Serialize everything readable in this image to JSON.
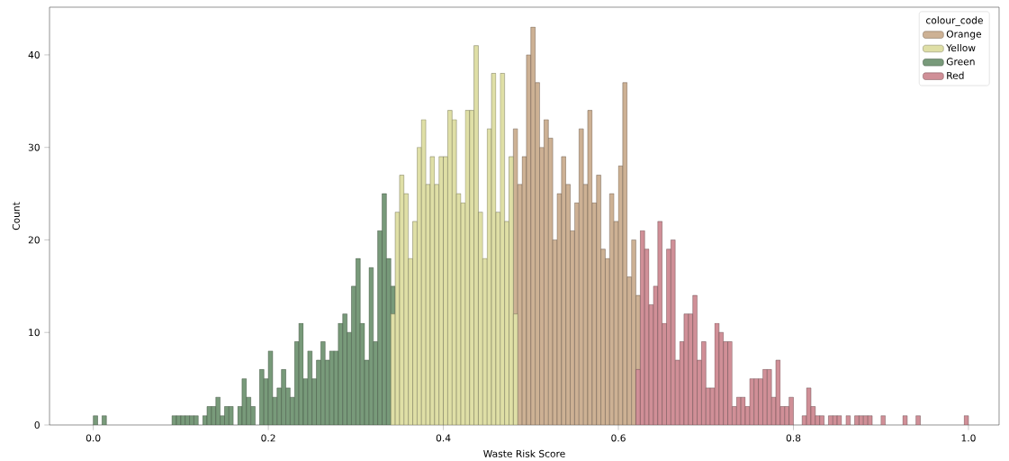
{
  "chart_data": {
    "type": "histogram",
    "xlabel": "Waste Risk Score",
    "ylabel": "Count",
    "legend_title": "colour_code",
    "legend": "top right",
    "xlim": [
      -0.05,
      1.035
    ],
    "ylim": [
      0,
      45.15
    ],
    "xticks": [
      {
        "value": 0,
        "label": "0.0"
      },
      {
        "value": 0.2,
        "label": "0.2"
      },
      {
        "value": 0.4,
        "label": "0.4"
      },
      {
        "value": 0.6,
        "label": "0.6"
      },
      {
        "value": 0.8,
        "label": "0.8"
      },
      {
        "value": 1,
        "label": "1.0"
      }
    ],
    "yticks": [
      0,
      10,
      20,
      30,
      40
    ],
    "bins": [
      0,
      0.005,
      0.01,
      0.015,
      0.02,
      0.025,
      0.03,
      0.035,
      0.04,
      0.045,
      0.05,
      0.055,
      0.06,
      0.065,
      0.07,
      0.075,
      0.08,
      0.085,
      0.09,
      0.095,
      0.1,
      0.105,
      0.11,
      0.115,
      0.12,
      0.125,
      0.13,
      0.135,
      0.14,
      0.145,
      0.15,
      0.155,
      0.16,
      0.165,
      0.17,
      0.175,
      0.18,
      0.185,
      0.19,
      0.195,
      0.2,
      0.205,
      0.21,
      0.215,
      0.22,
      0.225,
      0.23,
      0.235,
      0.24,
      0.245,
      0.25,
      0.255,
      0.26,
      0.265,
      0.27,
      0.275,
      0.28,
      0.285,
      0.29,
      0.295,
      0.3,
      0.305,
      0.31,
      0.315,
      0.32,
      0.325,
      0.33,
      0.335,
      0.34,
      0.345,
      0.35,
      0.355,
      0.36,
      0.365,
      0.37,
      0.375,
      0.38,
      0.385,
      0.39,
      0.395,
      0.4,
      0.405,
      0.41,
      0.415,
      0.42,
      0.425,
      0.43,
      0.435,
      0.44,
      0.445,
      0.45,
      0.455,
      0.46,
      0.465,
      0.47,
      0.475,
      0.48,
      0.485,
      0.49,
      0.495,
      0.5,
      0.505,
      0.51,
      0.515,
      0.52,
      0.525,
      0.53,
      0.535,
      0.54,
      0.545,
      0.55,
      0.555,
      0.56,
      0.565,
      0.57,
      0.575,
      0.58,
      0.585,
      0.59,
      0.595,
      0.6,
      0.605,
      0.61,
      0.615,
      0.62,
      0.625,
      0.63,
      0.635,
      0.64,
      0.645,
      0.65,
      0.655,
      0.66,
      0.665,
      0.67,
      0.675,
      0.68,
      0.685,
      0.69,
      0.695,
      0.7,
      0.705,
      0.71,
      0.715,
      0.72,
      0.725,
      0.73,
      0.735,
      0.74,
      0.745,
      0.75,
      0.755,
      0.76,
      0.765,
      0.77,
      0.775,
      0.78,
      0.785,
      0.79,
      0.795,
      0.8,
      0.805,
      0.81,
      0.815,
      0.82,
      0.825,
      0.83,
      0.835,
      0.84,
      0.845,
      0.85,
      0.855,
      0.86,
      0.865,
      0.87,
      0.875,
      0.88,
      0.885,
      0.89,
      0.895,
      0.9,
      0.905,
      0.91,
      0.915,
      0.92,
      0.925,
      0.93,
      0.935,
      0.94,
      0.945,
      0.95,
      0.955,
      0.96,
      0.965,
      0.97,
      0.975,
      0.98,
      0.985,
      0.99,
      0.995,
      1
    ],
    "series": [
      {
        "name": "Orange",
        "color": "#cdb194",
        "values": [
          null,
          null,
          null,
          null,
          null,
          null,
          null,
          null,
          null,
          null,
          null,
          null,
          null,
          null,
          null,
          null,
          null,
          null,
          null,
          null,
          null,
          null,
          null,
          null,
          null,
          null,
          null,
          null,
          null,
          null,
          null,
          null,
          null,
          null,
          null,
          null,
          null,
          null,
          null,
          null,
          null,
          null,
          null,
          null,
          null,
          null,
          null,
          null,
          null,
          null,
          null,
          null,
          null,
          null,
          null,
          null,
          null,
          null,
          null,
          null,
          null,
          null,
          null,
          null,
          null,
          null,
          null,
          null,
          null,
          null,
          null,
          null,
          null,
          null,
          null,
          null,
          null,
          null,
          null,
          null,
          null,
          null,
          null,
          null,
          null,
          null,
          null,
          null,
          null,
          null,
          null,
          null,
          null,
          null,
          null,
          null,
          32,
          26,
          29,
          40,
          43,
          37,
          30,
          33,
          31,
          20,
          25,
          29,
          26,
          21,
          24,
          32,
          26,
          34,
          24,
          27,
          19,
          18,
          25,
          22,
          28,
          37,
          16,
          20,
          14,
          null,
          null,
          null,
          null,
          null,
          null,
          null,
          null,
          null,
          null,
          null,
          null,
          null,
          null,
          null,
          null,
          null,
          null,
          null,
          null,
          null,
          null,
          null,
          null,
          null,
          null,
          null,
          null,
          null,
          null,
          null,
          null,
          null,
          null,
          null,
          null,
          null,
          null,
          null,
          null,
          null,
          null,
          null,
          null,
          null,
          null,
          null,
          null,
          null,
          null,
          null,
          null,
          null,
          null,
          null,
          null,
          null,
          null,
          null,
          null,
          null,
          null,
          null,
          null,
          null,
          null,
          null,
          null,
          null,
          null,
          null,
          null,
          null,
          null,
          null
        ]
      },
      {
        "name": "Yellow",
        "color": "#dfdfa6",
        "values": [
          null,
          null,
          null,
          null,
          null,
          null,
          null,
          null,
          null,
          null,
          null,
          null,
          null,
          null,
          null,
          null,
          null,
          null,
          null,
          null,
          null,
          null,
          null,
          null,
          null,
          null,
          null,
          null,
          null,
          null,
          null,
          null,
          null,
          null,
          null,
          null,
          null,
          null,
          null,
          null,
          null,
          null,
          null,
          null,
          null,
          null,
          null,
          null,
          null,
          null,
          null,
          null,
          null,
          null,
          null,
          null,
          null,
          null,
          null,
          null,
          null,
          null,
          null,
          null,
          null,
          null,
          null,
          null,
          12,
          23,
          27,
          25,
          18,
          22,
          30,
          33,
          26,
          29,
          26,
          29,
          29,
          34,
          33,
          25,
          24,
          34,
          34,
          41,
          23,
          18,
          32,
          38,
          23,
          38,
          22,
          29,
          12,
          null,
          null,
          null,
          null,
          null,
          null,
          null,
          null,
          null,
          null,
          null,
          null,
          null,
          null,
          null,
          null,
          null,
          null,
          null,
          null,
          null,
          null,
          null,
          null,
          null,
          null,
          null,
          null,
          null,
          null,
          null,
          null,
          null,
          null,
          null,
          null,
          null,
          null,
          null,
          null,
          null,
          null,
          null,
          null,
          null,
          null,
          null,
          null,
          null,
          null,
          null,
          null,
          null,
          null,
          null,
          null,
          null,
          null,
          null,
          null,
          null,
          null,
          null,
          null,
          null,
          null,
          null,
          null,
          null,
          null,
          null,
          null,
          null,
          null,
          null,
          null,
          null,
          null,
          null,
          null,
          null,
          null,
          null,
          null,
          null,
          null,
          null,
          null,
          null,
          null,
          null,
          null,
          null,
          null,
          null,
          null,
          null,
          null,
          null,
          null,
          null,
          null,
          null
        ]
      },
      {
        "name": "Green",
        "color": "#789a7a",
        "values": [
          1,
          0,
          1,
          0,
          0,
          0,
          0,
          0,
          0,
          0,
          0,
          0,
          0,
          0,
          0,
          0,
          0,
          0,
          1,
          1,
          1,
          1,
          1,
          1,
          0,
          1,
          2,
          2,
          3,
          1,
          2,
          2,
          0,
          2,
          5,
          3,
          2,
          0,
          6,
          5,
          8,
          3,
          4,
          6,
          4,
          3,
          9,
          11,
          5,
          8,
          5,
          7,
          9,
          7,
          8,
          8,
          11,
          12,
          10,
          15,
          18,
          11,
          7,
          17,
          9,
          21,
          25,
          18,
          15,
          null,
          null,
          null,
          null,
          null,
          null,
          null,
          null,
          null,
          null,
          null,
          null,
          null,
          null,
          null,
          null,
          null,
          null,
          null,
          null,
          null,
          null,
          null,
          null,
          null,
          null,
          null,
          null,
          null,
          null,
          null,
          null,
          null,
          null,
          null,
          null,
          null,
          null,
          null,
          null,
          null,
          null,
          null,
          null,
          null,
          null,
          null,
          null,
          null,
          null,
          null,
          null,
          null,
          null,
          null,
          null,
          null,
          null,
          null,
          null,
          null,
          null,
          null,
          null,
          null,
          null,
          null,
          null,
          null,
          null,
          null,
          null,
          null,
          null,
          null,
          null,
          null,
          null,
          null,
          null,
          null,
          null,
          null,
          null,
          null,
          null,
          null,
          null,
          null,
          null,
          null,
          null,
          null,
          null,
          null,
          null,
          null,
          null,
          null,
          null,
          null,
          null,
          null,
          null,
          null,
          null,
          null,
          null,
          null,
          null,
          null,
          null,
          null,
          null,
          null,
          null,
          null,
          null,
          null,
          null,
          null,
          null,
          null,
          null,
          null,
          null,
          null,
          null,
          null,
          null,
          null
        ]
      },
      {
        "name": "Red",
        "color": "#d08f97",
        "values": [
          null,
          null,
          null,
          null,
          null,
          null,
          null,
          null,
          null,
          null,
          null,
          null,
          null,
          null,
          null,
          null,
          null,
          null,
          null,
          null,
          null,
          null,
          null,
          null,
          null,
          null,
          null,
          null,
          null,
          null,
          null,
          null,
          null,
          null,
          null,
          null,
          null,
          null,
          null,
          null,
          null,
          null,
          null,
          null,
          null,
          null,
          null,
          null,
          null,
          null,
          null,
          null,
          null,
          null,
          null,
          null,
          null,
          null,
          null,
          null,
          null,
          null,
          null,
          null,
          null,
          null,
          null,
          null,
          null,
          null,
          null,
          null,
          null,
          null,
          null,
          null,
          null,
          null,
          null,
          null,
          null,
          null,
          null,
          null,
          null,
          null,
          null,
          null,
          null,
          null,
          null,
          null,
          null,
          null,
          null,
          null,
          null,
          null,
          null,
          null,
          null,
          null,
          null,
          null,
          null,
          null,
          null,
          null,
          null,
          null,
          null,
          null,
          null,
          null,
          null,
          null,
          null,
          null,
          null,
          null,
          null,
          null,
          null,
          null,
          6,
          21,
          19,
          13,
          15,
          22,
          11,
          19,
          20,
          7,
          9,
          12,
          12,
          14,
          7,
          9,
          4,
          4,
          11,
          10,
          9,
          9,
          2,
          3,
          3,
          2,
          5,
          5,
          5,
          6,
          6,
          3,
          7,
          2,
          2,
          3,
          0,
          0,
          1,
          4,
          2,
          1,
          1,
          0,
          1,
          1,
          1,
          0,
          1,
          0,
          1,
          1,
          1,
          1,
          0,
          0,
          1,
          0,
          0,
          0,
          0,
          1,
          0,
          0,
          1,
          0,
          0,
          0,
          0,
          0,
          0,
          0,
          0,
          0,
          0,
          1
        ]
      }
    ]
  }
}
